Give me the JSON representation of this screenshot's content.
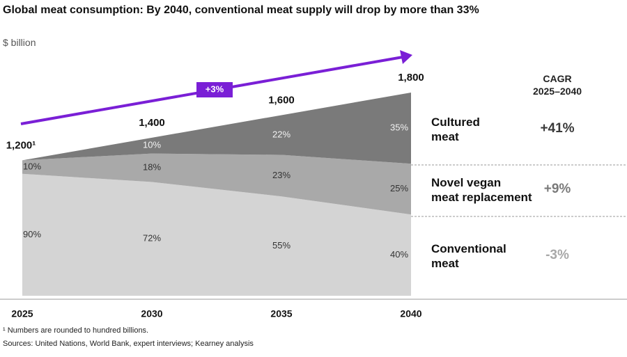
{
  "chart_data": {
    "type": "stacked-area-share",
    "title": "Global meat consumption: By 2040, conventional meat supply will drop by more than 33%",
    "unit_label": "$ billion",
    "categories": [
      "2025",
      "2030",
      "2035",
      "2040"
    ],
    "ylim": [
      0,
      1800
    ],
    "totals": {
      "values": [
        1200,
        1400,
        1600,
        1800
      ],
      "value_labels": [
        "1,200¹",
        "1,400",
        "1,600",
        "1,800"
      ]
    },
    "series": [
      {
        "name": "Conventional\nmeat",
        "color": "#d4d4d4",
        "label_color": "#333333",
        "values": [
          90,
          72,
          55,
          40
        ],
        "value_labels": [
          "90%",
          "72%",
          "55%",
          "40%"
        ],
        "cagr": "-3%",
        "cagr_color": "#a8a8a8"
      },
      {
        "name": "Novel vegan\nmeat replacement",
        "color": "#a9a9a9",
        "label_color": "#333333",
        "values": [
          10,
          18,
          23,
          25
        ],
        "value_labels": [
          "10%",
          "18%",
          "23%",
          "25%"
        ],
        "cagr": "+9%",
        "cagr_color": "#7a7a7a"
      },
      {
        "name": "Cultured\nmeat",
        "color": "#7a7a7a",
        "label_color": "#f2f2f2",
        "values": [
          0,
          10,
          22,
          35
        ],
        "value_labels": [
          null,
          "10%",
          "22%",
          "35%"
        ],
        "cagr": "+41%",
        "cagr_color": "#3a3a3a"
      }
    ],
    "cagr_header": "CAGR\n2025–2040",
    "growth": {
      "label": "+3%",
      "color": "#7a1fd6"
    },
    "footnote": "¹ Numbers are rounded to hundred billions.",
    "source": "Sources: United Nations, World Bank, expert interviews; Kearney analysis"
  }
}
